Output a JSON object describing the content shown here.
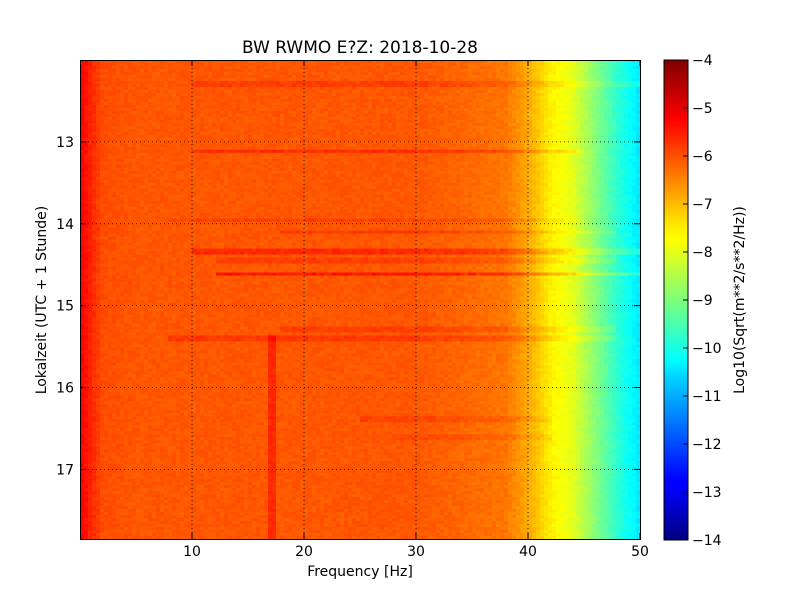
{
  "chart_data": {
    "type": "heatmap",
    "title": "BW RWMO E?Z: 2018-10-28",
    "xlabel": "Frequency [Hz]",
    "ylabel": "Lokalzeit (UTC + 1 Stunde)",
    "xlim": [
      0,
      50
    ],
    "ylim": [
      12.0,
      17.85
    ],
    "y_inverted": true,
    "grid": true,
    "xticks": [
      10,
      20,
      30,
      40,
      50
    ],
    "xtick_labels": [
      "10",
      "20",
      "30",
      "40",
      "50"
    ],
    "yticks": [
      13,
      14,
      15,
      16,
      17
    ],
    "ytick_labels": [
      "13",
      "14",
      "15",
      "16",
      "17"
    ],
    "colorscale": "jet",
    "colorbar": {
      "label": "Log10(Sqrt(m**2/s**2/Hz))",
      "range": [
        -14,
        -4
      ],
      "ticks": [
        -4,
        -5,
        -6,
        -7,
        -8,
        -9,
        -10,
        -11,
        -12,
        -13,
        -14
      ],
      "tick_labels": [
        "−4",
        "−5",
        "−6",
        "−7",
        "−8",
        "−9",
        "−10",
        "−11",
        "−12",
        "−13",
        "−14"
      ]
    },
    "spectral_profile": {
      "frequency_hz": [
        0,
        1,
        2,
        5,
        10,
        20,
        30,
        38,
        40,
        42,
        44,
        46,
        48,
        50
      ],
      "level": [
        -5.2,
        -5.6,
        -6.0,
        -6.1,
        -6.1,
        -6.1,
        -6.1,
        -6.4,
        -6.9,
        -7.6,
        -8.0,
        -8.9,
        -9.8,
        -10.5
      ]
    },
    "horizontal_bands": [
      {
        "time": 12.3,
        "f_from": 10,
        "f_to": 50,
        "delta": 0.3
      },
      {
        "time": 13.12,
        "f_from": 10,
        "f_to": 45,
        "delta": 0.5
      },
      {
        "time": 13.95,
        "f_from": 8,
        "f_to": 45,
        "delta": 0.3
      },
      {
        "time": 14.1,
        "f_from": 18,
        "f_to": 48,
        "delta": 0.35
      },
      {
        "time": 14.35,
        "f_from": 10,
        "f_to": 50,
        "delta": 0.55
      },
      {
        "time": 14.45,
        "f_from": 12,
        "f_to": 48,
        "delta": 0.3
      },
      {
        "time": 14.62,
        "f_from": 12,
        "f_to": 50,
        "delta": 0.8
      },
      {
        "time": 15.3,
        "f_from": 18,
        "f_to": 48,
        "delta": 0.3
      },
      {
        "time": 15.4,
        "f_from": 8,
        "f_to": 48,
        "delta": 0.35
      },
      {
        "time": 16.38,
        "f_from": 25,
        "f_to": 42,
        "delta": 0.25
      },
      {
        "time": 16.6,
        "f_from": 28,
        "f_to": 42,
        "delta": 0.2
      }
    ],
    "vertical_features": [
      {
        "frequency": 17.2,
        "t_from": 15.35,
        "t_to": 17.85,
        "delta": 0.45
      }
    ]
  }
}
